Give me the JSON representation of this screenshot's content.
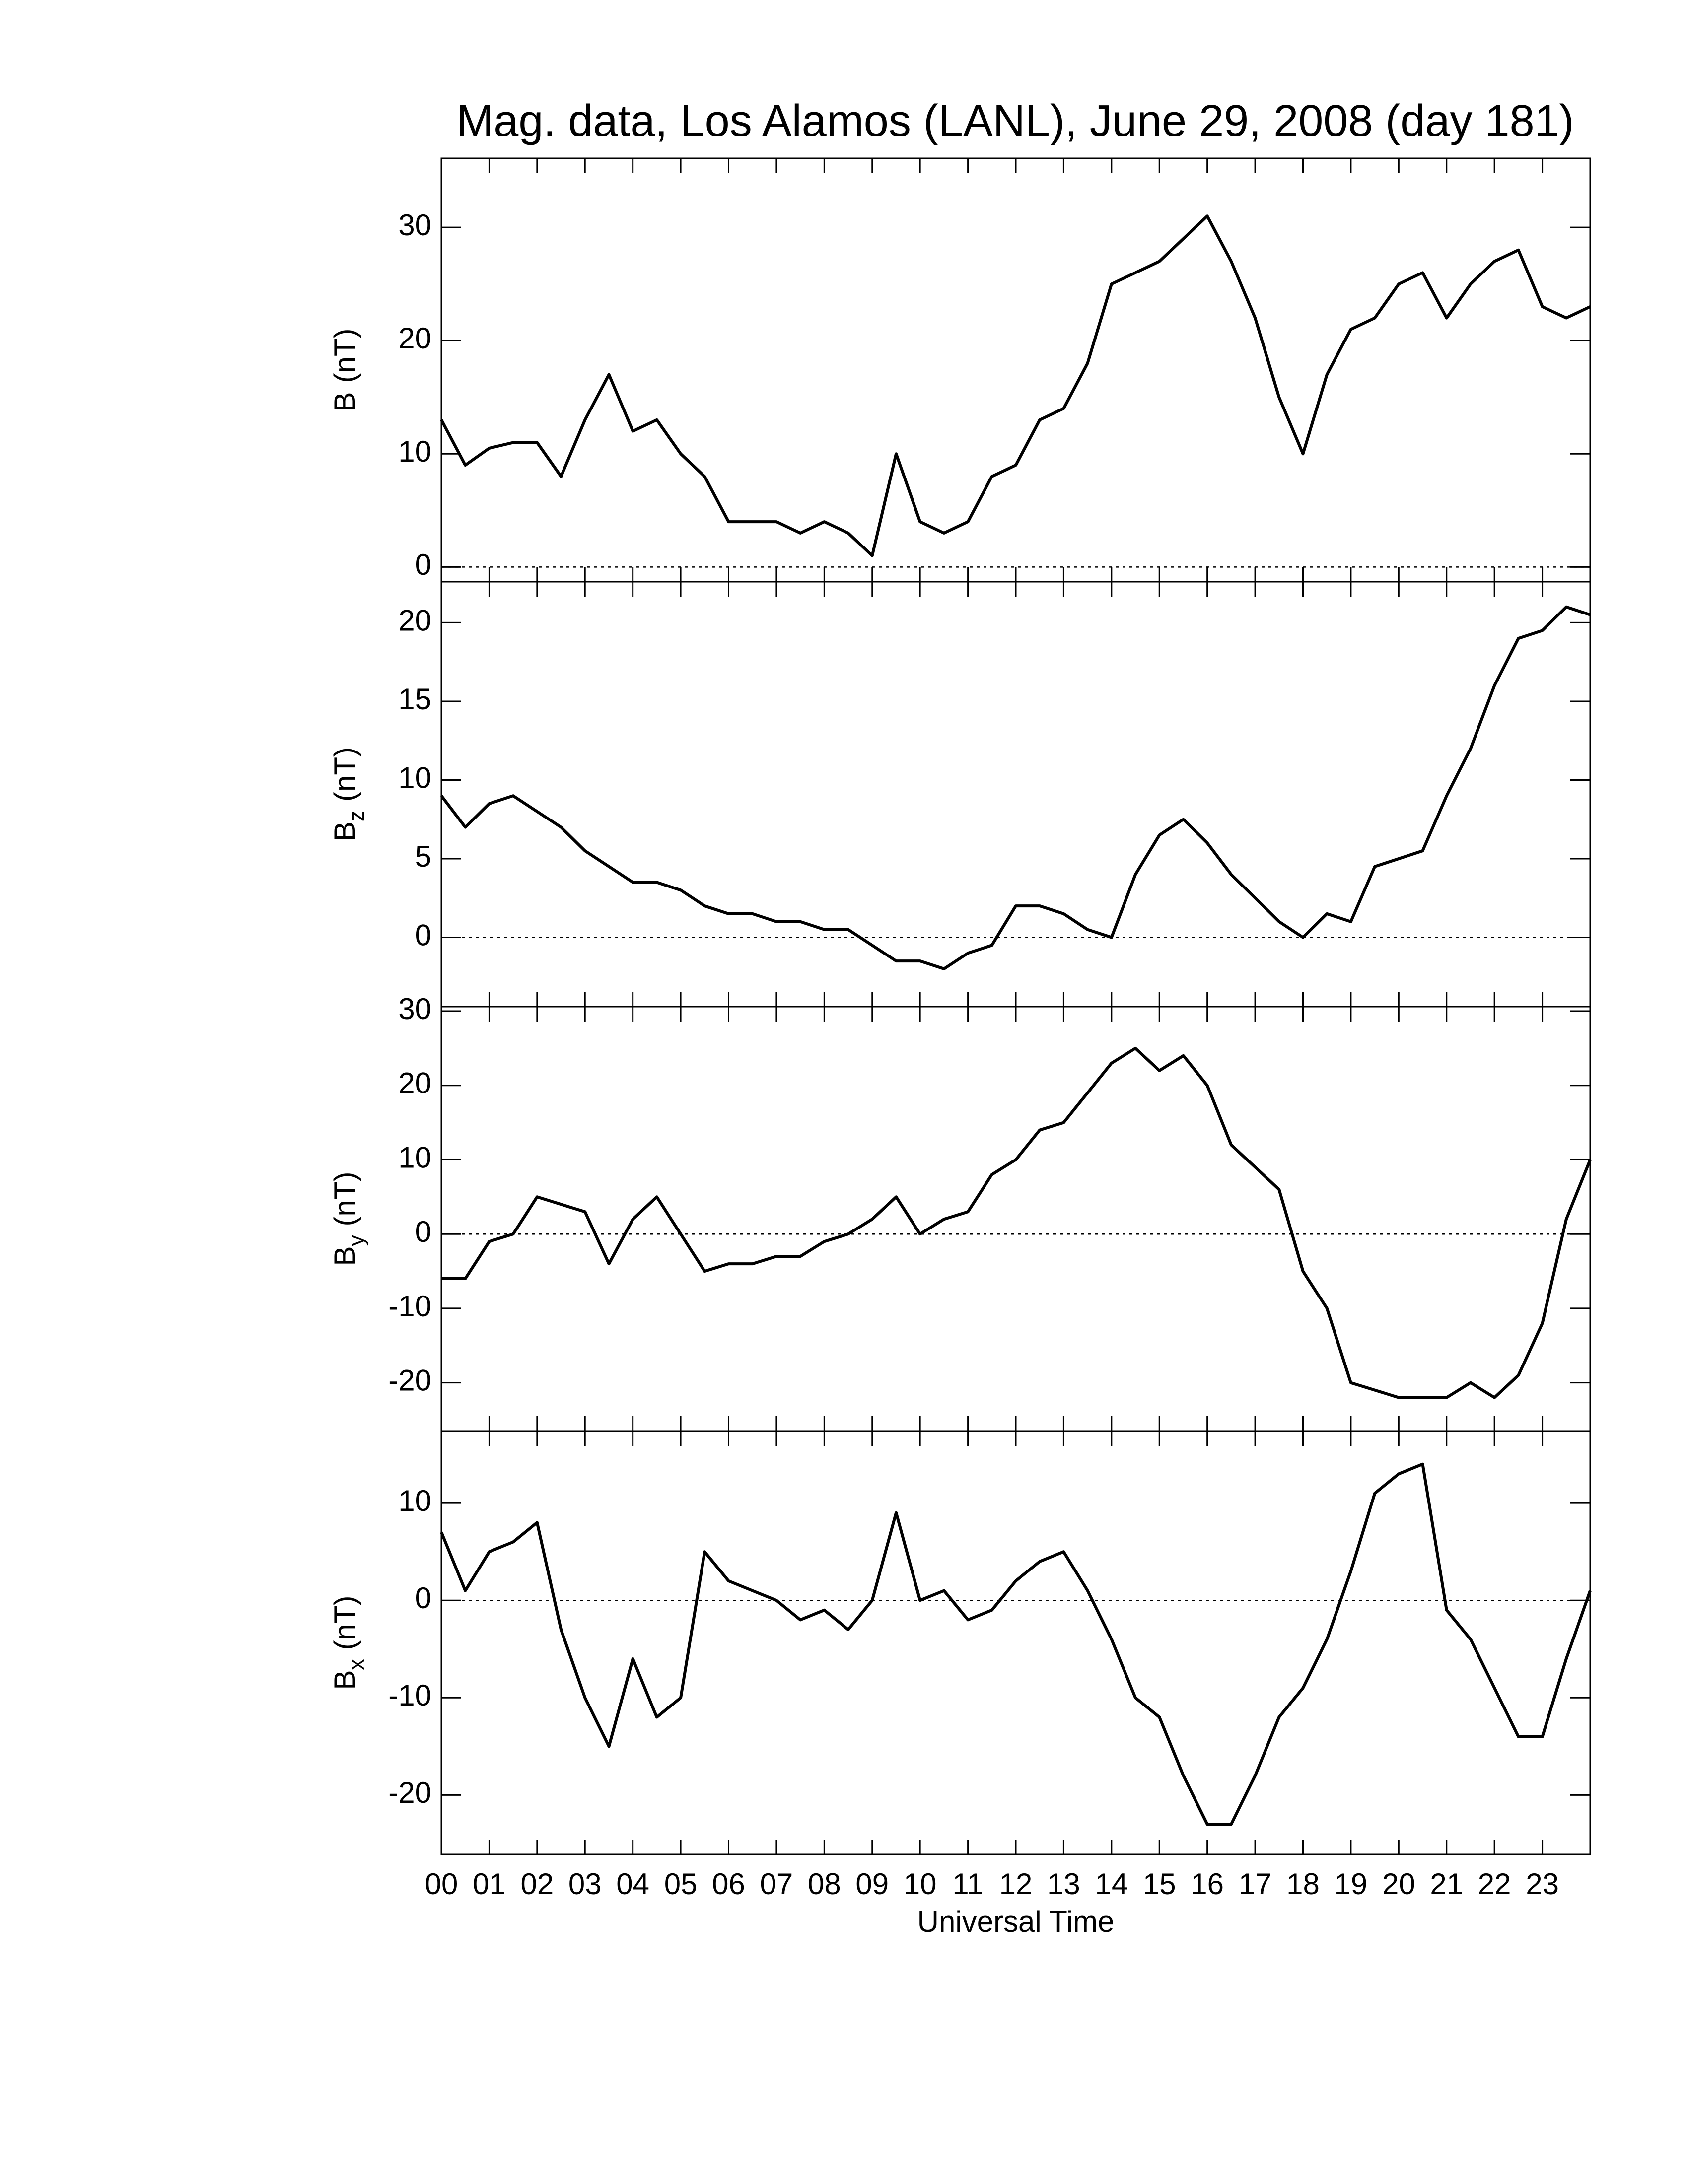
{
  "chart_data": [
    {
      "type": "line",
      "title": "Mag. data, Los Alamos (LANL), June 29, 2008 (day 181)",
      "y_label": "B",
      "y_label_unit": "(nT)",
      "color": "#000000",
      "hline": 0,
      "ylim": [
        -1.3,
        36.1
      ],
      "yticks": [
        0,
        10,
        20,
        30
      ],
      "x": [
        0,
        0.5,
        1,
        1.5,
        2,
        2.5,
        3,
        3.5,
        4,
        4.5,
        5,
        5.5,
        6,
        6.5,
        7,
        7.5,
        8,
        8.5,
        9,
        9.5,
        10,
        10.5,
        11,
        11.5,
        12,
        12.5,
        13,
        13.5,
        14,
        14.5,
        15,
        15.5,
        16,
        16.5,
        17,
        17.5,
        18,
        18.5,
        19,
        19.5,
        20,
        20.5,
        21,
        21.5,
        22,
        22.5,
        23,
        23.5,
        24
      ],
      "values": [
        13,
        9,
        10.5,
        11,
        11,
        8,
        13,
        17,
        12,
        13,
        10,
        8,
        4,
        4,
        4,
        3,
        4,
        3,
        1,
        10,
        4,
        3,
        4,
        8,
        9,
        13,
        14,
        18,
        25,
        26,
        27,
        29,
        31,
        27,
        22,
        15,
        10,
        17,
        21,
        22,
        25,
        26,
        22,
        25,
        27,
        28,
        23,
        22,
        23
      ]
    },
    {
      "type": "line",
      "y_label": "B",
      "y_label_sub": "z",
      "y_label_unit": "(nT)",
      "color": "#000000",
      "hline": 0,
      "ylim": [
        -4.4,
        22.6
      ],
      "yticks": [
        0,
        5,
        10,
        15,
        20
      ],
      "x": [
        0,
        0.5,
        1,
        1.5,
        2,
        2.5,
        3,
        3.5,
        4,
        4.5,
        5,
        5.5,
        6,
        6.5,
        7,
        7.5,
        8,
        8.5,
        9,
        9.5,
        10,
        10.5,
        11,
        11.5,
        12,
        12.5,
        13,
        13.5,
        14,
        14.5,
        15,
        15.5,
        16,
        16.5,
        17,
        17.5,
        18,
        18.5,
        19,
        19.5,
        20,
        20.5,
        21,
        21.5,
        22,
        22.5,
        23,
        23.5,
        24
      ],
      "values": [
        9,
        7,
        8.5,
        9,
        8,
        7,
        5.5,
        4.5,
        3.5,
        3.5,
        3,
        2,
        1.5,
        1.5,
        1,
        1,
        0.5,
        0.5,
        -0.5,
        -1.5,
        -1.5,
        -2,
        -1,
        -0.5,
        2,
        2,
        1.5,
        0.5,
        0,
        4,
        6.5,
        7.5,
        6,
        4,
        2.5,
        1,
        0,
        1.5,
        1,
        4.5,
        5,
        5.5,
        9,
        12,
        16,
        19,
        19.5,
        21,
        20.5
      ]
    },
    {
      "type": "line",
      "y_label": "B",
      "y_label_sub": "y",
      "y_label_unit": "(nT)",
      "color": "#000000",
      "hline": 0,
      "ylim": [
        -26.5,
        30.6
      ],
      "yticks": [
        -20,
        -10,
        0,
        10,
        20,
        30
      ],
      "x": [
        0,
        0.5,
        1,
        1.5,
        2,
        2.5,
        3,
        3.5,
        4,
        4.5,
        5,
        5.5,
        6,
        6.5,
        7,
        7.5,
        8,
        8.5,
        9,
        9.5,
        10,
        10.5,
        11,
        11.5,
        12,
        12.5,
        13,
        13.5,
        14,
        14.5,
        15,
        15.5,
        16,
        16.5,
        17,
        17.5,
        18,
        18.5,
        19,
        19.5,
        20,
        20.5,
        21,
        21.5,
        22,
        22.5,
        23,
        23.5,
        24
      ],
      "values": [
        -6,
        -6,
        -1,
        0,
        5,
        4,
        3,
        -4,
        2,
        5,
        0,
        -5,
        -4,
        -4,
        -3,
        -3,
        -1,
        0,
        2,
        5,
        0,
        2,
        3,
        8,
        10,
        14,
        15,
        19,
        23,
        25,
        22,
        24,
        20,
        12,
        9,
        6,
        -5,
        -10,
        -20,
        -21,
        -22,
        -22,
        -22,
        -20,
        -22,
        -19,
        -12,
        2,
        10
      ]
    },
    {
      "type": "line",
      "y_label": "B",
      "y_label_sub": "x",
      "y_label_unit": "(nT)",
      "color": "#000000",
      "hline": 0,
      "ylim": [
        -26.1,
        17.4
      ],
      "yticks": [
        -20,
        -10,
        0,
        10
      ],
      "x_label": "Universal Time",
      "xlim": [
        0,
        24
      ],
      "xticks": [
        {
          "value": 0,
          "label": "00"
        },
        {
          "value": 1,
          "label": "01"
        },
        {
          "value": 2,
          "label": "02"
        },
        {
          "value": 3,
          "label": "03"
        },
        {
          "value": 4,
          "label": "04"
        },
        {
          "value": 5,
          "label": "05"
        },
        {
          "value": 6,
          "label": "06"
        },
        {
          "value": 7,
          "label": "07"
        },
        {
          "value": 8,
          "label": "08"
        },
        {
          "value": 9,
          "label": "09"
        },
        {
          "value": 10,
          "label": "10"
        },
        {
          "value": 11,
          "label": "11"
        },
        {
          "value": 12,
          "label": "12"
        },
        {
          "value": 13,
          "label": "13"
        },
        {
          "value": 14,
          "label": "14"
        },
        {
          "value": 15,
          "label": "15"
        },
        {
          "value": 16,
          "label": "16"
        },
        {
          "value": 17,
          "label": "17"
        },
        {
          "value": 18,
          "label": "18"
        },
        {
          "value": 19,
          "label": "19"
        },
        {
          "value": 20,
          "label": "20"
        },
        {
          "value": 21,
          "label": "21"
        },
        {
          "value": 22,
          "label": "22"
        },
        {
          "value": 23,
          "label": "23"
        }
      ],
      "x": [
        0,
        0.5,
        1,
        1.5,
        2,
        2.5,
        3,
        3.5,
        4,
        4.5,
        5,
        5.5,
        6,
        6.5,
        7,
        7.5,
        8,
        8.5,
        9,
        9.5,
        10,
        10.5,
        11,
        11.5,
        12,
        12.5,
        13,
        13.5,
        14,
        14.5,
        15,
        15.5,
        16,
        16.5,
        17,
        17.5,
        18,
        18.5,
        19,
        19.5,
        20,
        20.5,
        21,
        21.5,
        22,
        22.5,
        23,
        23.5,
        24
      ],
      "values": [
        7,
        1,
        5,
        6,
        8,
        -3,
        -10,
        -15,
        -6,
        -12,
        -10,
        5,
        2,
        1,
        0,
        -2,
        -1,
        -3,
        0,
        9,
        0,
        1,
        -2,
        -1,
        2,
        4,
        5,
        1,
        -4,
        -10,
        -12,
        -18,
        -23,
        -23,
        -18,
        -12,
        -9,
        -4,
        3,
        11,
        13,
        14,
        -1,
        -4,
        -9,
        -14,
        -14,
        -6,
        1
      ]
    }
  ]
}
